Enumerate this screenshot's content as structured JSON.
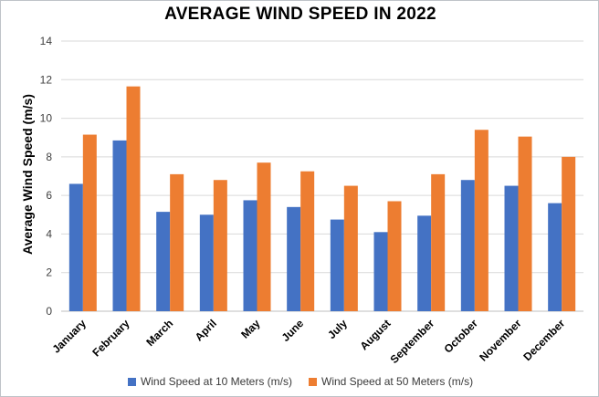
{
  "chart_data": {
    "type": "bar",
    "title": "AVERAGE WIND SPEED IN 2022",
    "xlabel": "",
    "ylabel": "Average Wind Speed (m/s)",
    "ylim": [
      0,
      14
    ],
    "yticks": [
      0,
      2,
      4,
      6,
      8,
      10,
      12,
      14
    ],
    "grid": true,
    "legend_position": "bottom",
    "categories": [
      "January",
      "February",
      "March",
      "April",
      "May",
      "June",
      "July",
      "August",
      "September",
      "October",
      "November",
      "December"
    ],
    "series": [
      {
        "name": "Wind Speed at 10 Meters (m/s)",
        "color": "#4472c4",
        "values": [
          6.6,
          8.85,
          5.15,
          5.0,
          5.75,
          5.4,
          4.75,
          4.1,
          4.95,
          6.8,
          6.5,
          5.6
        ]
      },
      {
        "name": "Wind Speed at 50 Meters (m/s)",
        "color": "#ed7d31",
        "values": [
          9.15,
          11.65,
          7.1,
          6.8,
          7.7,
          7.25,
          6.5,
          5.7,
          7.1,
          9.4,
          9.05,
          8.0
        ]
      }
    ]
  }
}
